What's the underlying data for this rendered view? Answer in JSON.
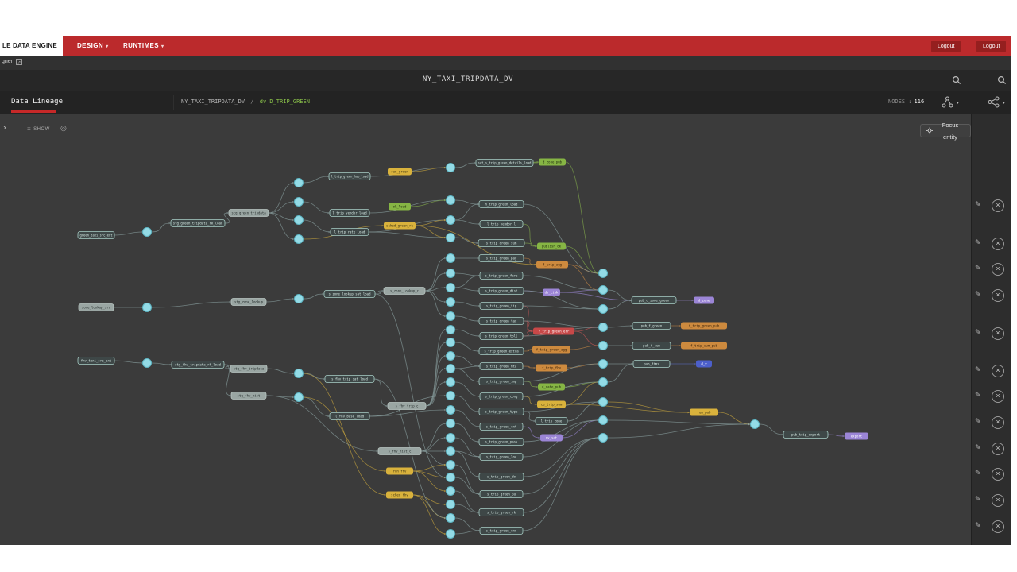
{
  "navbar": {
    "brand": "LE DATA ENGINE",
    "menus": [
      {
        "label": "DESIGN"
      },
      {
        "label": "RUNTIMES"
      }
    ],
    "logout_a": "Logout",
    "logout_b": "Logout"
  },
  "substrip": {
    "text": "gner"
  },
  "header": {
    "title": "NY_TAXI_TRIPDATA_DV"
  },
  "tabbar": {
    "tab": "Data Lineage",
    "crumb_parent": "NY_TAXI_TRIPDATA_DV",
    "crumb_sep": "/",
    "crumb_current": "dv D_TRIP_GREEN",
    "nodes_label": "NODES :",
    "nodes_count": "116"
  },
  "toolbar": {
    "show_label": "SHOW",
    "focus_label": "Focus entity"
  },
  "panel": {
    "rows": [
      116,
      164,
      196,
      229,
      277,
      324,
      356,
      389,
      422,
      454,
      487,
      520
    ]
  },
  "colors": {
    "accent_red": "#c62828",
    "crumb_green": "#8bc34a",
    "node": {
      "p": {
        "fill": "#3e4747",
        "stroke": "#a9cfc7",
        "text": "#d6e9e4"
      },
      "s": {
        "fill": "#9aa6a3",
        "stroke": "#b9c6c2",
        "text": "#242c2b"
      },
      "y": {
        "fill": "#d9b23c",
        "stroke": "#d9b23c",
        "text": "#3a3214"
      },
      "o": {
        "fill": "#cd8a3e",
        "stroke": "#cd8a3e",
        "text": "#38220c"
      },
      "g": {
        "fill": "#86b544",
        "stroke": "#86b544",
        "text": "#1d2a0e"
      },
      "v": {
        "fill": "#9b85d6",
        "stroke": "#9b85d6",
        "text": "#ffffff"
      },
      "r": {
        "fill": "#c84848",
        "stroke": "#c84848",
        "text": "#ffffff"
      },
      "b": {
        "fill": "#4c5fca",
        "stroke": "#4c5fca",
        "text": "#ffffff"
      },
      "e": {
        "fill": "#93dbe6",
        "stroke": "#5fb6c4",
        "text": ""
      }
    },
    "edge": {
      "default": "#8aa0a0",
      "y": "#c7a53d",
      "o": "#c28544",
      "g": "#84ae4c",
      "v": "#9a87d2",
      "r": "#c25555",
      "b": "#5b6cc9"
    }
  },
  "graph": {
    "nodes": [
      [
        "e1",
        185,
        292,
        "e"
      ],
      [
        "e2",
        185,
        387,
        "e"
      ],
      [
        "e3",
        185,
        457,
        "e"
      ],
      [
        "e4",
        376,
        230,
        "e"
      ],
      [
        "e5",
        376,
        254,
        "e"
      ],
      [
        "e6",
        376,
        277,
        "e"
      ],
      [
        "e7",
        376,
        301,
        "e"
      ],
      [
        "e8",
        376,
        376,
        "e"
      ],
      [
        "e9",
        376,
        470,
        "e"
      ],
      [
        "e10",
        376,
        500,
        "e"
      ],
      [
        "c1",
        567,
        211,
        "e"
      ],
      [
        "c2",
        567,
        252,
        "e"
      ],
      [
        "c3",
        567,
        277,
        "e"
      ],
      [
        "c4",
        567,
        299,
        "e"
      ],
      [
        "c5",
        567,
        325,
        "e"
      ],
      [
        "c6",
        567,
        344,
        "e"
      ],
      [
        "c7",
        567,
        362,
        "e"
      ],
      [
        "c8",
        567,
        380,
        "e"
      ],
      [
        "c9",
        567,
        398,
        "e"
      ],
      [
        "c10",
        567,
        415,
        "e"
      ],
      [
        "c11",
        567,
        431,
        "e"
      ],
      [
        "c12",
        567,
        448,
        "e"
      ],
      [
        "c13",
        567,
        464,
        "e"
      ],
      [
        "c14",
        567,
        481,
        "e"
      ],
      [
        "c15",
        567,
        498,
        "e"
      ],
      [
        "c16",
        567,
        516,
        "e"
      ],
      [
        "c17",
        567,
        533,
        "e"
      ],
      [
        "c18",
        567,
        551,
        "e"
      ],
      [
        "c19",
        567,
        568,
        "e"
      ],
      [
        "c20",
        567,
        585,
        "e"
      ],
      [
        "c21",
        567,
        601,
        "e"
      ],
      [
        "c22",
        567,
        618,
        "e"
      ],
      [
        "c23",
        567,
        635,
        "e"
      ],
      [
        "c24",
        567,
        652,
        "e"
      ],
      [
        "c25",
        567,
        672,
        "e"
      ],
      [
        "r1",
        759,
        344,
        "e"
      ],
      [
        "r2",
        759,
        365,
        "e"
      ],
      [
        "r3",
        759,
        389,
        "e"
      ],
      [
        "r4",
        759,
        412,
        "e"
      ],
      [
        "r5",
        759,
        435,
        "e"
      ],
      [
        "r6",
        759,
        458,
        "e"
      ],
      [
        "r7",
        759,
        481,
        "e"
      ],
      [
        "r8",
        759,
        506,
        "e"
      ],
      [
        "r9",
        759,
        529,
        "e"
      ],
      [
        "r10",
        759,
        551,
        "e"
      ],
      [
        "e46",
        950,
        534,
        "e"
      ],
      [
        "p1",
        121,
        296,
        "p",
        46,
        "green_taxi_src_ext"
      ],
      [
        "p2",
        121,
        387,
        "s",
        44,
        "zone_lookup_src"
      ],
      [
        "p3",
        121,
        454,
        "p",
        46,
        "fhv_taxi_src_ext"
      ],
      [
        "p4",
        249,
        281,
        "p",
        68,
        "stg_green_tripdata_rk_load"
      ],
      [
        "p5",
        249,
        459,
        "p",
        66,
        "stg_fhv_tripdata_rk_load"
      ],
      [
        "p6",
        313,
        268,
        "s",
        50,
        "stg_green_tripdata"
      ],
      [
        "p7",
        313,
        380,
        "s",
        44,
        "stg_zone_lookup"
      ],
      [
        "p8",
        313,
        464,
        "s",
        46,
        "stg_fhv_tripdata"
      ],
      [
        "p9",
        313,
        498,
        "s",
        44,
        "stg_fhv_hist"
      ],
      [
        "p10",
        440,
        222,
        "p",
        52,
        "l_trip_green_hub_load"
      ],
      [
        "p11",
        440,
        268,
        "p",
        50,
        "l_trip_vendor_load"
      ],
      [
        "p12",
        440,
        292,
        "p",
        48,
        "l_trip_rate_load"
      ],
      [
        "p13",
        503,
        216,
        "y",
        30,
        "run_green"
      ],
      [
        "p14",
        503,
        260,
        "g",
        28,
        "ok_load"
      ],
      [
        "p15",
        503,
        284,
        "y",
        40,
        "sched_green_rk"
      ],
      [
        "p16",
        440,
        370,
        "p",
        64,
        "s_zone_lookup_sat_load"
      ],
      [
        "p17",
        509,
        366,
        "s",
        52,
        "s_zone_lookup_c"
      ],
      [
        "p18",
        440,
        477,
        "p",
        62,
        "s_fhv_trip_sat_load"
      ],
      [
        "p19",
        512,
        511,
        "s",
        48,
        "s_fhv_trip_c"
      ],
      [
        "p20",
        440,
        524,
        "p",
        50,
        "l_fhv_base_load"
      ],
      [
        "p21",
        503,
        568,
        "s",
        54,
        "s_fhv_hist_c"
      ],
      [
        "p22",
        503,
        593,
        "y",
        34,
        "run_fhv"
      ],
      [
        "p23",
        503,
        623,
        "y",
        34,
        "sched_fhv"
      ],
      [
        "p24",
        635,
        205,
        "p",
        72,
        "sat_s_trip_green_details_load"
      ],
      [
        "p25",
        631,
        257,
        "p",
        56,
        "h_trip_green_load"
      ],
      [
        "p26",
        631,
        282,
        "p",
        54,
        "l_trip_vendor_l"
      ],
      [
        "p27",
        631,
        306,
        "p",
        58,
        "s_trip_green_sum"
      ],
      [
        "p28",
        631,
        325,
        "p",
        56,
        "s_trip_green_pay"
      ],
      [
        "p29",
        631,
        347,
        "p",
        54,
        "s_trip_green_fare"
      ],
      [
        "p30",
        631,
        366,
        "p",
        56,
        "s_trip_green_dist"
      ],
      [
        "p31",
        631,
        385,
        "p",
        54,
        "s_trip_green_tip"
      ],
      [
        "p32",
        631,
        404,
        "p",
        56,
        "s_trip_green_tax"
      ],
      [
        "p33",
        631,
        423,
        "p",
        54,
        "s_trip_green_toll"
      ],
      [
        "p34",
        631,
        442,
        "p",
        56,
        "s_trip_green_extra"
      ],
      [
        "p35",
        631,
        461,
        "p",
        54,
        "s_trip_green_mta"
      ],
      [
        "p36",
        631,
        480,
        "p",
        56,
        "s_trip_green_imp"
      ],
      [
        "p37",
        631,
        499,
        "p",
        54,
        "s_trip_green_cong"
      ],
      [
        "p38",
        631,
        518,
        "p",
        56,
        "s_trip_green_type"
      ],
      [
        "p39",
        631,
        537,
        "p",
        54,
        "s_trip_green_cnt"
      ],
      [
        "p40",
        631,
        556,
        "p",
        56,
        "s_trip_green_pass"
      ],
      [
        "p41",
        631,
        575,
        "p",
        54,
        "s_trip_green_loc"
      ],
      [
        "p42",
        631,
        600,
        "p",
        56,
        "s_trip_green_do"
      ],
      [
        "p43",
        631,
        622,
        "p",
        54,
        "s_trip_green_pu"
      ],
      [
        "p44",
        631,
        645,
        "p",
        56,
        "s_trip_green_rk"
      ],
      [
        "p45",
        631,
        668,
        "p",
        54,
        "s_trip_green_end"
      ],
      [
        "p46",
        695,
        204,
        "g",
        34,
        "d_zone_pub"
      ],
      [
        "p47",
        694,
        310,
        "g",
        36,
        "publish_ok"
      ],
      [
        "p48",
        695,
        333,
        "o",
        40,
        "f_trip_agg"
      ],
      [
        "p49",
        694,
        368,
        "v",
        22,
        "dv_link"
      ],
      [
        "p50",
        697,
        417,
        "r",
        52,
        "f_trip_green_err"
      ],
      [
        "p51",
        694,
        440,
        "o",
        48,
        "f_trip_green_agg"
      ],
      [
        "p52",
        694,
        463,
        "o",
        40,
        "f_trip_fhv"
      ],
      [
        "p53",
        694,
        487,
        "g",
        34,
        "d_date_pub"
      ],
      [
        "p54",
        694,
        509,
        "y",
        36,
        "cu_trip_sum"
      ],
      [
        "p55",
        694,
        530,
        "p",
        40,
        "l_trip_zone"
      ],
      [
        "p56",
        694,
        551,
        "v",
        28,
        "dv_sat"
      ],
      [
        "p57",
        823,
        378,
        "p",
        56,
        "pub_d_zone_green"
      ],
      [
        "p58",
        886,
        378,
        "v",
        26,
        "d_zone"
      ],
      [
        "p59",
        820,
        410,
        "p",
        48,
        "pub_f_green"
      ],
      [
        "p60",
        886,
        410,
        "o",
        58,
        "f_trip_green_pub"
      ],
      [
        "p61",
        820,
        435,
        "p",
        48,
        "pub_f_sum"
      ],
      [
        "p62",
        886,
        435,
        "o",
        58,
        "f_trip_sum_pub"
      ],
      [
        "p63",
        820,
        458,
        "p",
        46,
        "pub_dims"
      ],
      [
        "p64",
        886,
        458,
        "b",
        20,
        "d_v"
      ],
      [
        "p65",
        886,
        519,
        "y",
        36,
        "run_pub"
      ],
      [
        "p66",
        1014,
        547,
        "p",
        56,
        "pub_trip_export"
      ],
      [
        "p67",
        1078,
        549,
        "v",
        30,
        "export"
      ]
    ],
    "edges": [
      [
        "p1",
        "e1"
      ],
      [
        "e1",
        "p4"
      ],
      [
        "p4",
        "p6"
      ],
      [
        "p6",
        "e4"
      ],
      [
        "p6",
        "e5"
      ],
      [
        "p6",
        "e6"
      ],
      [
        "p6",
        "e7"
      ],
      [
        "p2",
        "e2"
      ],
      [
        "e2",
        "p7"
      ],
      [
        "p7",
        "e8"
      ],
      [
        "p3",
        "e3"
      ],
      [
        "e3",
        "p5"
      ],
      [
        "p5",
        "p8"
      ],
      [
        "p5",
        "p9"
      ],
      [
        "p8",
        "e9"
      ],
      [
        "p9",
        "e10"
      ],
      [
        "e4",
        "p10"
      ],
      [
        "e5",
        "p11"
      ],
      [
        "e6",
        "p12"
      ],
      [
        "e7",
        "p15"
      ],
      [
        "p10",
        "c1"
      ],
      [
        "p11",
        "c2"
      ],
      [
        "p12",
        "c3"
      ],
      [
        "p12",
        "c4"
      ],
      [
        "p13",
        "c1",
        "y"
      ],
      [
        "p14",
        "c2",
        "g"
      ],
      [
        "p15",
        "c3",
        "y"
      ],
      [
        "p15",
        "c4",
        "y"
      ],
      [
        "e8",
        "p16"
      ],
      [
        "p16",
        "p17"
      ],
      [
        "p17",
        "c5"
      ],
      [
        "p17",
        "c6"
      ],
      [
        "p17",
        "c7"
      ],
      [
        "p17",
        "c8"
      ],
      [
        "p17",
        "c9"
      ],
      [
        "e9",
        "p18"
      ],
      [
        "p18",
        "p19"
      ],
      [
        "p19",
        "c10"
      ],
      [
        "p19",
        "c11"
      ],
      [
        "p19",
        "c12"
      ],
      [
        "p19",
        "c13"
      ],
      [
        "p19",
        "c14"
      ],
      [
        "e10",
        "p20"
      ],
      [
        "p20",
        "c15"
      ],
      [
        "p20",
        "c16"
      ],
      [
        "p9",
        "p21"
      ],
      [
        "p21",
        "c17"
      ],
      [
        "p21",
        "c18"
      ],
      [
        "p21",
        "c19"
      ],
      [
        "p21",
        "c20"
      ],
      [
        "p22",
        "c20",
        "y"
      ],
      [
        "p22",
        "c21",
        "y"
      ],
      [
        "p22",
        "c22",
        "y"
      ],
      [
        "p23",
        "c23",
        "y"
      ],
      [
        "p23",
        "c24",
        "y"
      ],
      [
        "p23",
        "c25",
        "y"
      ],
      [
        "e10",
        "p22"
      ],
      [
        "e9",
        "p23"
      ],
      [
        "p16",
        "c21"
      ],
      [
        "p18",
        "c24"
      ],
      [
        "c1",
        "p24"
      ],
      [
        "p24",
        "p46",
        "g"
      ],
      [
        "c2",
        "p25"
      ],
      [
        "c3",
        "p26"
      ],
      [
        "c4",
        "p27"
      ],
      [
        "c5",
        "p28"
      ],
      [
        "c6",
        "p29"
      ],
      [
        "c7",
        "p30"
      ],
      [
        "c8",
        "p31"
      ],
      [
        "c9",
        "p32"
      ],
      [
        "c10",
        "p33"
      ],
      [
        "c11",
        "p34"
      ],
      [
        "c12",
        "p35"
      ],
      [
        "c13",
        "p36"
      ],
      [
        "c14",
        "p37"
      ],
      [
        "c15",
        "p38"
      ],
      [
        "c16",
        "p39"
      ],
      [
        "c17",
        "p40"
      ],
      [
        "c18",
        "p41"
      ],
      [
        "c19",
        "p42"
      ],
      [
        "c20",
        "p43"
      ],
      [
        "c21",
        "p43"
      ],
      [
        "c22",
        "p44"
      ],
      [
        "c23",
        "p44"
      ],
      [
        "c24",
        "p45"
      ],
      [
        "c25",
        "p45"
      ],
      [
        "c3",
        "p25"
      ],
      [
        "c7",
        "p29"
      ],
      [
        "c13",
        "p35"
      ],
      [
        "c19",
        "p41"
      ],
      [
        "p26",
        "p47"
      ],
      [
        "p27",
        "p47"
      ],
      [
        "p47",
        "r1",
        "g"
      ],
      [
        "p28",
        "p48"
      ],
      [
        "p48",
        "r1",
        "o"
      ],
      [
        "p48",
        "r2",
        "o"
      ],
      [
        "p30",
        "p49"
      ],
      [
        "p49",
        "r2",
        "v"
      ],
      [
        "p49",
        "p57",
        "v"
      ],
      [
        "p31",
        "p50",
        "r"
      ],
      [
        "p32",
        "p50",
        "r"
      ],
      [
        "p33",
        "p50",
        "r"
      ],
      [
        "p50",
        "r4",
        "r"
      ],
      [
        "p50",
        "r5",
        "r"
      ],
      [
        "p34",
        "p51"
      ],
      [
        "p51",
        "r5",
        "o"
      ],
      [
        "p35",
        "p52"
      ],
      [
        "p52",
        "r6",
        "o"
      ],
      [
        "p36",
        "p53"
      ],
      [
        "p53",
        "r7",
        "g"
      ],
      [
        "p37",
        "p54"
      ],
      [
        "p54",
        "r7",
        "y"
      ],
      [
        "p38",
        "p55"
      ],
      [
        "p55",
        "r8"
      ],
      [
        "p39",
        "p56"
      ],
      [
        "p56",
        "r9",
        "v"
      ],
      [
        "p25",
        "r1"
      ],
      [
        "p29",
        "r2"
      ],
      [
        "p30",
        "r3"
      ],
      [
        "p31",
        "r3"
      ],
      [
        "p32",
        "r4"
      ],
      [
        "p33",
        "r4"
      ],
      [
        "p36",
        "r6"
      ],
      [
        "p37",
        "r7"
      ],
      [
        "p38",
        "r8"
      ],
      [
        "p40",
        "r9"
      ],
      [
        "p41",
        "r9"
      ],
      [
        "p42",
        "r10"
      ],
      [
        "p43",
        "r10"
      ],
      [
        "p44",
        "r10"
      ],
      [
        "p45",
        "r10"
      ],
      [
        "p46",
        "r1",
        "g"
      ],
      [
        "p15",
        "p48",
        "y"
      ],
      [
        "r2",
        "p57"
      ],
      [
        "r3",
        "p57"
      ],
      [
        "p57",
        "p58",
        "v"
      ],
      [
        "r4",
        "p59"
      ],
      [
        "p59",
        "p60",
        "o"
      ],
      [
        "r5",
        "p61"
      ],
      [
        "p61",
        "p62",
        "o"
      ],
      [
        "r6",
        "p63"
      ],
      [
        "r7",
        "p63"
      ],
      [
        "p63",
        "p64",
        "b"
      ],
      [
        "r8",
        "p65",
        "y"
      ],
      [
        "p54",
        "p65",
        "y"
      ],
      [
        "p65",
        "e46",
        "y"
      ],
      [
        "r9",
        "e46"
      ],
      [
        "r10",
        "e46"
      ],
      [
        "e46",
        "p66"
      ],
      [
        "p66",
        "p67",
        "v"
      ]
    ]
  }
}
